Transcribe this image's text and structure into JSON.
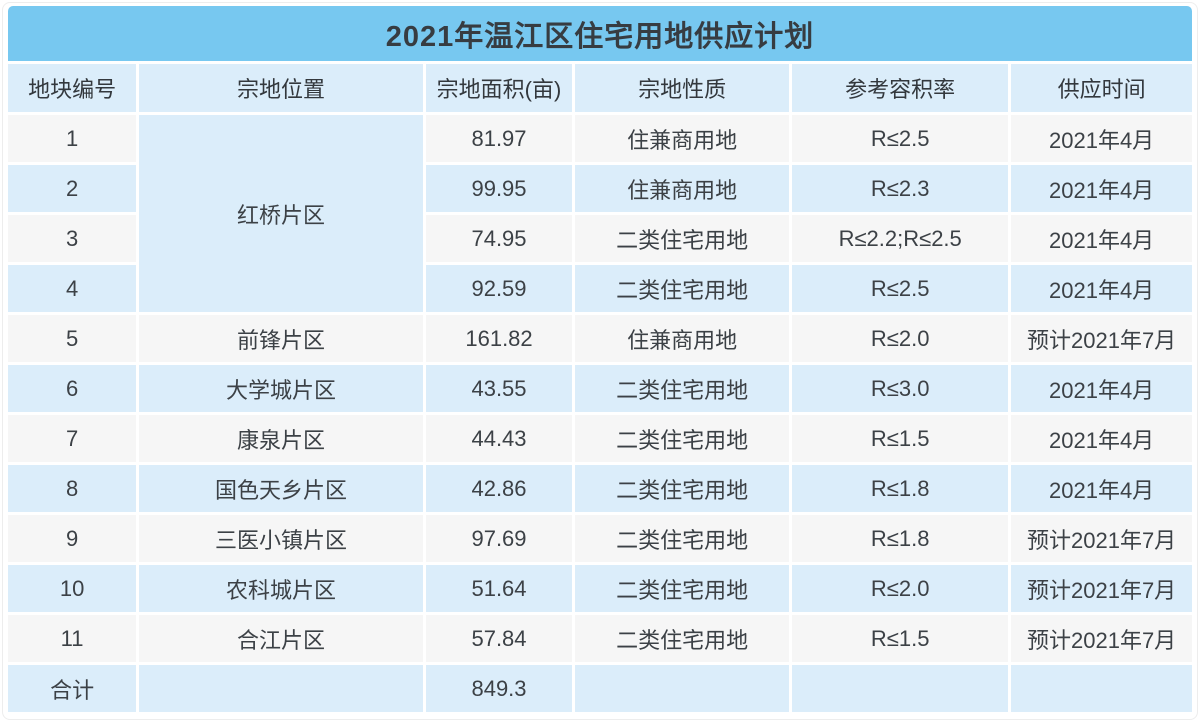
{
  "colors": {
    "title_bar_bg": "#77c8f0",
    "header_bg": "#dbedfa",
    "blue_row_bg": "#dbedfa",
    "gray_row_bg": "#f6f6f6",
    "gap_color": "#ffffff",
    "title_text": "#373c41",
    "cell_text": "#3c4146"
  },
  "chart_data": {
    "type": "table",
    "title": "2021年温江区住宅用地供应计划",
    "columns": [
      "地块编号",
      "宗地位置",
      "宗地面积(亩)",
      "宗地性质",
      "参考容积率",
      "供应时间"
    ],
    "merged": {
      "column": "宗地位置",
      "value": "红桥片区",
      "rows_spanned": "1-4"
    },
    "rows": [
      {
        "no": "1",
        "location": "红桥片区",
        "area": "81.97",
        "nature": "住兼商用地",
        "ratio": "R≤2.5",
        "time": "2021年4月"
      },
      {
        "no": "2",
        "area": "99.95",
        "nature": "住兼商用地",
        "ratio": "R≤2.3",
        "time": "2021年4月"
      },
      {
        "no": "3",
        "area": "74.95",
        "nature": "二类住宅用地",
        "ratio": "R≤2.2;R≤2.5",
        "time": "2021年4月"
      },
      {
        "no": "4",
        "area": "92.59",
        "nature": "二类住宅用地",
        "ratio": "R≤2.5",
        "time": "2021年4月"
      },
      {
        "no": "5",
        "location": "前锋片区",
        "area": "161.82",
        "nature": "住兼商用地",
        "ratio": "R≤2.0",
        "time": "预计2021年7月"
      },
      {
        "no": "6",
        "location": "大学城片区",
        "area": "43.55",
        "nature": "二类住宅用地",
        "ratio": "R≤3.0",
        "time": "2021年4月"
      },
      {
        "no": "7",
        "location": "康泉片区",
        "area": "44.43",
        "nature": "二类住宅用地",
        "ratio": "R≤1.5",
        "time": "2021年4月"
      },
      {
        "no": "8",
        "location": "国色天乡片区",
        "area": "42.86",
        "nature": "二类住宅用地",
        "ratio": "R≤1.8",
        "time": "2021年4月"
      },
      {
        "no": "9",
        "location": "三医小镇片区",
        "area": "97.69",
        "nature": "二类住宅用地",
        "ratio": "R≤1.8",
        "time": "预计2021年7月"
      },
      {
        "no": "10",
        "location": "农科城片区",
        "area": "51.64",
        "nature": "二类住宅用地",
        "ratio": "R≤2.0",
        "time": "预计2021年7月"
      },
      {
        "no": "11",
        "location": "合江片区",
        "area": "57.84",
        "nature": "二类住宅用地",
        "ratio": "R≤1.5",
        "time": "预计2021年7月"
      }
    ],
    "total_row": {
      "label": "合计",
      "location": "",
      "area": "849.3",
      "nature": "",
      "ratio": "",
      "time": ""
    }
  }
}
